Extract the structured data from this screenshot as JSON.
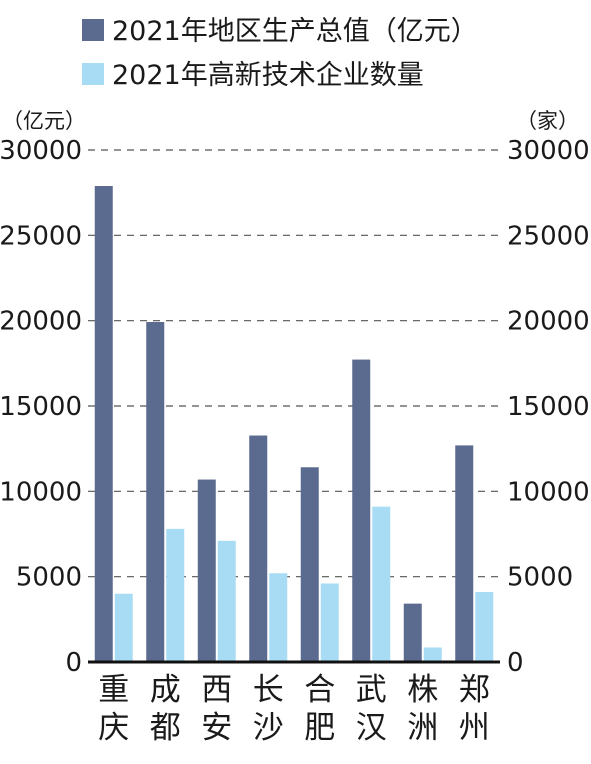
{
  "chart_data": {
    "type": "bar",
    "categories": [
      "重庆",
      "成都",
      "西安",
      "长沙",
      "合肥",
      "武汉",
      "株洲",
      "郑州"
    ],
    "series": [
      {
        "name": "2021年地区生产总值（亿元）",
        "axis": "left",
        "color": "#5b6a8f",
        "values": [
          27890,
          19920,
          10690,
          13270,
          11410,
          17720,
          3420,
          12690
        ]
      },
      {
        "name": "2021年高新技术企业数量",
        "axis": "right",
        "color": "#a8dcf4",
        "values": [
          4000,
          7800,
          7100,
          5200,
          4600,
          9100,
          850,
          4100
        ]
      }
    ],
    "yaxis_left": {
      "unit_label": "（亿元）",
      "range": [
        0,
        30000
      ],
      "ticks": [
        "30000",
        "25000",
        "20000",
        "15000",
        "10000",
        "5000",
        "0"
      ]
    },
    "yaxis_right": {
      "unit_label": "（家）",
      "range": [
        0,
        30000
      ],
      "ticks": [
        "30000",
        "25000",
        "20000",
        "15000",
        "10000",
        "5000",
        "0"
      ]
    },
    "grid": true,
    "grid_style": "dashed",
    "legend_position": "top-left"
  }
}
